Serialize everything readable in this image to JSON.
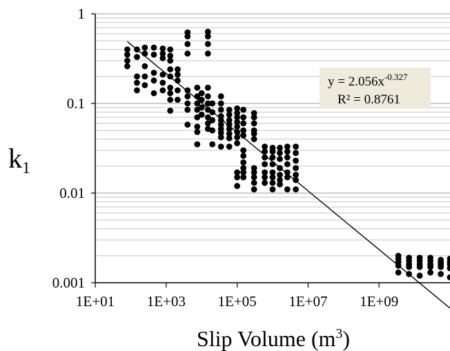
{
  "chart_data": {
    "type": "scatter",
    "x_scale": "log",
    "y_scale": "log",
    "xlim": [
      10,
      100000000000
    ],
    "ylim": [
      0.001,
      1
    ],
    "x_tick_labels": [
      "1E+01",
      "1E+03",
      "1E+05",
      "1E+07",
      "1E+09"
    ],
    "y_tick_labels": [
      "0.001",
      "0.01",
      "0.1",
      "1"
    ],
    "xlabel": "Slip Volume (m",
    "xlabel_sup": "3",
    "xlabel_end": ")",
    "ylabel": "k",
    "ylabel_sub": "1",
    "grid": "horizontal minor + major gridlines",
    "trendline": {
      "type": "power",
      "a": 2.056,
      "b": -0.327,
      "x_range": [
        80,
        100000000000
      ],
      "equation_text": "y = 2.056x",
      "equation_exp": "-0.327",
      "r2_text": "R² = 0.8761"
    },
    "annotation_box_color": "#eeeadc",
    "point_color": "#000000",
    "points": [
      [
        80,
        0.4
      ],
      [
        80,
        0.35
      ],
      [
        80,
        0.3
      ],
      [
        80,
        0.26
      ],
      [
        150,
        0.4
      ],
      [
        150,
        0.33
      ],
      [
        150,
        0.2
      ],
      [
        150,
        0.17
      ],
      [
        150,
        0.14
      ],
      [
        250,
        0.42
      ],
      [
        250,
        0.36
      ],
      [
        250,
        0.26
      ],
      [
        250,
        0.2
      ],
      [
        250,
        0.16
      ],
      [
        450,
        0.42
      ],
      [
        450,
        0.35
      ],
      [
        450,
        0.22
      ],
      [
        450,
        0.18
      ],
      [
        450,
        0.13
      ],
      [
        800,
        0.41
      ],
      [
        800,
        0.36
      ],
      [
        800,
        0.32
      ],
      [
        800,
        0.21
      ],
      [
        800,
        0.17
      ],
      [
        800,
        0.14
      ],
      [
        1300,
        0.4
      ],
      [
        1300,
        0.34
      ],
      [
        1300,
        0.3
      ],
      [
        1300,
        0.24
      ],
      [
        1300,
        0.2
      ],
      [
        1300,
        0.15
      ],
      [
        1300,
        0.13
      ],
      [
        1300,
        0.11
      ],
      [
        1300,
        0.083
      ],
      [
        2100,
        0.24
      ],
      [
        2100,
        0.21
      ],
      [
        2100,
        0.18
      ],
      [
        2100,
        0.14
      ],
      [
        2100,
        0.11
      ],
      [
        4000,
        0.62
      ],
      [
        4000,
        0.56
      ],
      [
        4000,
        0.46
      ],
      [
        4000,
        0.36
      ],
      [
        4000,
        0.14
      ],
      [
        4000,
        0.12
      ],
      [
        4000,
        0.1
      ],
      [
        4000,
        0.085
      ],
      [
        4000,
        0.058
      ],
      [
        7500,
        0.15
      ],
      [
        7500,
        0.12
      ],
      [
        7500,
        0.1
      ],
      [
        7500,
        0.085
      ],
      [
        7500,
        0.07
      ],
      [
        7500,
        0.055
      ],
      [
        7500,
        0.048
      ],
      [
        7500,
        0.035
      ],
      [
        10000,
        0.13
      ],
      [
        10000,
        0.11
      ],
      [
        10000,
        0.09
      ],
      [
        10000,
        0.075
      ],
      [
        15000,
        0.63
      ],
      [
        15000,
        0.56
      ],
      [
        15000,
        0.46
      ],
      [
        15000,
        0.36
      ],
      [
        15000,
        0.15
      ],
      [
        15000,
        0.12
      ],
      [
        15000,
        0.1
      ],
      [
        15000,
        0.085
      ],
      [
        15000,
        0.07
      ],
      [
        15000,
        0.06
      ],
      [
        15000,
        0.052
      ],
      [
        20000,
        0.1
      ],
      [
        20000,
        0.08
      ],
      [
        20000,
        0.065
      ],
      [
        20000,
        0.05
      ],
      [
        20000,
        0.035
      ],
      [
        35000,
        0.12
      ],
      [
        35000,
        0.1
      ],
      [
        35000,
        0.085
      ],
      [
        35000,
        0.072
      ],
      [
        35000,
        0.065
      ],
      [
        35000,
        0.058
      ],
      [
        35000,
        0.052
      ],
      [
        35000,
        0.047
      ],
      [
        35000,
        0.042
      ],
      [
        35000,
        0.033
      ],
      [
        60000,
        0.085
      ],
      [
        60000,
        0.075
      ],
      [
        60000,
        0.065
      ],
      [
        60000,
        0.058
      ],
      [
        60000,
        0.052
      ],
      [
        60000,
        0.046
      ],
      [
        60000,
        0.041
      ],
      [
        60000,
        0.033
      ],
      [
        100000,
        0.088
      ],
      [
        100000,
        0.078
      ],
      [
        100000,
        0.07
      ],
      [
        100000,
        0.062
      ],
      [
        100000,
        0.055
      ],
      [
        100000,
        0.048
      ],
      [
        100000,
        0.042
      ],
      [
        100000,
        0.036
      ],
      [
        100000,
        0.017
      ],
      [
        100000,
        0.015
      ],
      [
        100000,
        0.012
      ],
      [
        150000,
        0.085
      ],
      [
        150000,
        0.07
      ],
      [
        150000,
        0.06
      ],
      [
        150000,
        0.05
      ],
      [
        150000,
        0.044
      ],
      [
        150000,
        0.03
      ],
      [
        150000,
        0.026
      ],
      [
        150000,
        0.022
      ],
      [
        150000,
        0.019
      ],
      [
        150000,
        0.017
      ],
      [
        150000,
        0.015
      ],
      [
        300000,
        0.078
      ],
      [
        300000,
        0.07
      ],
      [
        300000,
        0.06
      ],
      [
        300000,
        0.05
      ],
      [
        300000,
        0.046
      ],
      [
        300000,
        0.04
      ],
      [
        300000,
        0.019
      ],
      [
        300000,
        0.017
      ],
      [
        300000,
        0.015
      ],
      [
        300000,
        0.013
      ],
      [
        300000,
        0.011
      ],
      [
        600000,
        0.033
      ],
      [
        600000,
        0.029
      ],
      [
        600000,
        0.025
      ],
      [
        600000,
        0.021
      ],
      [
        600000,
        0.017
      ],
      [
        600000,
        0.015
      ],
      [
        600000,
        0.013
      ],
      [
        1000000,
        0.032
      ],
      [
        1000000,
        0.029
      ],
      [
        1000000,
        0.025
      ],
      [
        1000000,
        0.021
      ],
      [
        1000000,
        0.017
      ],
      [
        1000000,
        0.015
      ],
      [
        1000000,
        0.013
      ],
      [
        1000000,
        0.011
      ],
      [
        1600000,
        0.032
      ],
      [
        1600000,
        0.028
      ],
      [
        1600000,
        0.024
      ],
      [
        1600000,
        0.019
      ],
      [
        1600000,
        0.016
      ],
      [
        1600000,
        0.014
      ],
      [
        1600000,
        0.0125
      ],
      [
        2600000,
        0.033
      ],
      [
        2600000,
        0.029
      ],
      [
        2600000,
        0.025
      ],
      [
        2600000,
        0.021
      ],
      [
        2600000,
        0.017
      ],
      [
        2600000,
        0.015
      ],
      [
        2600000,
        0.011
      ],
      [
        4500000,
        0.033
      ],
      [
        4500000,
        0.028
      ],
      [
        4500000,
        0.023
      ],
      [
        4500000,
        0.019
      ],
      [
        4500000,
        0.016
      ],
      [
        4500000,
        0.014
      ],
      [
        4500000,
        0.011
      ],
      [
        3500000000,
        0.002
      ],
      [
        3500000000,
        0.00185
      ],
      [
        3500000000,
        0.0017
      ],
      [
        3500000000,
        0.00155
      ],
      [
        3500000000,
        0.0013
      ],
      [
        7000000000,
        0.0019
      ],
      [
        7000000000,
        0.00175
      ],
      [
        7000000000,
        0.0016
      ],
      [
        7000000000,
        0.0015
      ],
      [
        7000000000,
        0.00125
      ],
      [
        14000000000,
        0.0019
      ],
      [
        14000000000,
        0.00175
      ],
      [
        14000000000,
        0.0016
      ],
      [
        14000000000,
        0.0015
      ],
      [
        14000000000,
        0.0012
      ],
      [
        28000000000,
        0.0019
      ],
      [
        28000000000,
        0.00175
      ],
      [
        28000000000,
        0.0016
      ],
      [
        28000000000,
        0.0015
      ],
      [
        28000000000,
        0.0013
      ],
      [
        55000000000,
        0.0018
      ],
      [
        55000000000,
        0.0017
      ],
      [
        55000000000,
        0.0016
      ],
      [
        55000000000,
        0.0015
      ],
      [
        55000000000,
        0.00125
      ],
      [
        100000000000,
        0.00185
      ],
      [
        100000000000,
        0.0017
      ],
      [
        100000000000,
        0.0016
      ],
      [
        100000000000,
        0.00145
      ],
      [
        100000000000,
        0.00115
      ]
    ]
  }
}
